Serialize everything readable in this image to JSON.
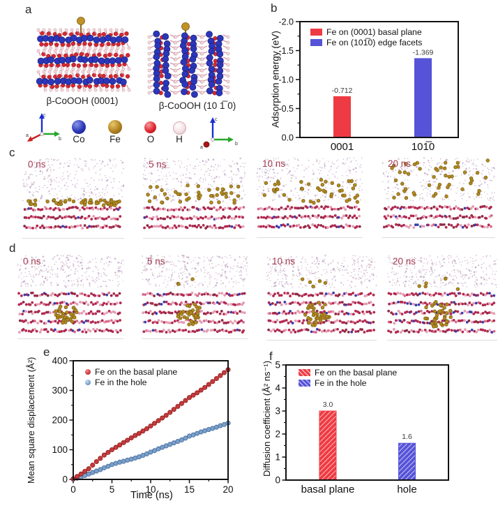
{
  "figure": {
    "panel_letters": {
      "a": "a",
      "b": "b",
      "c": "c",
      "d": "d",
      "e": "e",
      "f": "f"
    }
  },
  "panel_a": {
    "caption_left": "β-CoOOH (0001)",
    "caption_right": "β-CoOOH (10 1̅ 0)",
    "atoms": [
      {
        "label": "Co",
        "color": "#2b36b9"
      },
      {
        "label": "Fe",
        "color": "#b08020"
      },
      {
        "label": "O",
        "color": "#e02630"
      },
      {
        "label": "H",
        "color": "#f5e8ea"
      }
    ],
    "triad_labels": {
      "a": "a",
      "b": "b",
      "c": "c"
    }
  },
  "panel_c": {
    "frames": [
      "0 ns",
      "5 ns",
      "10 ns",
      "20 ns"
    ]
  },
  "panel_d": {
    "frames": [
      "0 ns",
      "5 ns",
      "10 ns",
      "20 ns"
    ]
  },
  "chart_data": [
    {
      "id": "b",
      "type": "bar",
      "categories": [
        "0001",
        "101̅0"
      ],
      "values": [
        -0.712,
        -1.369
      ],
      "value_labels": [
        "-0.712",
        "-1.369"
      ],
      "bar_colors": [
        "#ee3a42",
        "#5653d8"
      ],
      "ylabel": "Adsorption energy (eV)",
      "ylim": [
        0,
        -2.0
      ],
      "yticks": [
        -2.0,
        -1.5,
        -1.0,
        -0.5,
        0.0
      ],
      "ytick_labels": [
        "-2.0",
        "-1.5",
        "-1.0",
        "-0.5",
        "0.0"
      ],
      "legend": [
        {
          "label": "Fe on (0001) basal plane",
          "color": "#ee3a42"
        },
        {
          "label": "Fe on (101̅0) edge facets",
          "color": "#5653d8"
        }
      ],
      "legend_position": "top-left",
      "grid": false
    },
    {
      "id": "e",
      "type": "scatter",
      "xlabel": "Time (ns)",
      "ylabel": "Mean square displacement (Å²)",
      "xlim": [
        0,
        20
      ],
      "ylim": [
        0,
        400
      ],
      "xticks": [
        0,
        5,
        10,
        15,
        20
      ],
      "xtick_labels": [
        "0",
        "5",
        "10",
        "15",
        "20"
      ],
      "yticks": [
        0,
        100,
        200,
        300,
        400
      ],
      "ytick_labels": [
        "0",
        "100",
        "200",
        "300",
        "400"
      ],
      "x_start": 0,
      "x_step": 0.5,
      "series": [
        {
          "name": "Fe on the basal plane",
          "color": "#c93a3c",
          "edge": "#8f1f1f",
          "y": [
            2,
            10,
            18,
            27,
            36,
            48,
            60,
            71,
            82,
            91,
            100,
            108,
            116,
            124,
            132,
            140,
            148,
            155,
            163,
            171,
            180,
            189,
            198,
            207,
            216,
            226,
            236,
            246,
            256,
            266,
            276,
            284,
            292,
            301,
            310,
            320,
            330,
            340,
            350,
            360,
            370
          ]
        },
        {
          "name": "Fe in the hole",
          "color": "#78a0ca",
          "edge": "#4a6e9e",
          "y": [
            1,
            4,
            8,
            13,
            18,
            23,
            28,
            33,
            39,
            44,
            50,
            54,
            58,
            61,
            65,
            68,
            72,
            76,
            81,
            86,
            92,
            97,
            103,
            108,
            113,
            118,
            123,
            128,
            133,
            139,
            146,
            150,
            155,
            160,
            164,
            168,
            172,
            176,
            181,
            185,
            190
          ]
        }
      ],
      "legend_position": "top-left",
      "grid": false
    },
    {
      "id": "f",
      "type": "bar",
      "categories": [
        "basal plane",
        "hole"
      ],
      "values": [
        3.0,
        1.6
      ],
      "value_labels": [
        "3.0",
        "1.6"
      ],
      "bar_colors": [
        "#ee3a42",
        "#5653d8"
      ],
      "hatched": true,
      "ylabel": "Diffusion coefficient (Å² ns⁻¹)",
      "ylim": [
        0,
        5
      ],
      "yticks": [
        0,
        1,
        2,
        3,
        4,
        5
      ],
      "ytick_labels": [
        "0",
        "1",
        "2",
        "3",
        "4",
        "5"
      ],
      "legend": [
        {
          "label": "Fe on the basal plane",
          "color": "#ee3a42"
        },
        {
          "label": "Fe in the hole",
          "color": "#5653d8"
        }
      ],
      "legend_position": "top-left",
      "grid": false
    }
  ]
}
